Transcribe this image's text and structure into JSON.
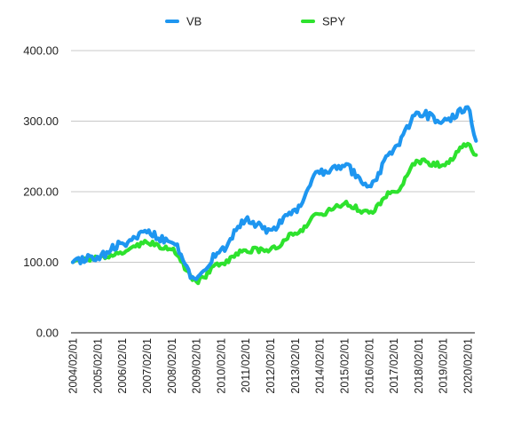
{
  "chart_data": {
    "type": "line",
    "title": "",
    "xlabel": "",
    "ylabel": "",
    "ylim": [
      0,
      400
    ],
    "yticks": [
      "0.00",
      "100.00",
      "200.00",
      "300.00",
      "400.00"
    ],
    "yticks_values": [
      0,
      100,
      200,
      300,
      400
    ],
    "grid": true,
    "legend_position": "top",
    "xticks": [
      "2004/02/01",
      "2005/02/01",
      "2006/02/01",
      "2007/02/01",
      "2008/02/01",
      "2009/02/01",
      "2010/02/01",
      "2011/02/01",
      "2012/02/01",
      "2013/02/01",
      "2014/02/01",
      "2015/02/01",
      "2016/02/01",
      "2017/02/01",
      "2018/02/01",
      "2019/02/01",
      "2020/02/01"
    ],
    "x_step": "1 year (yearly samples; end point 2020/06/01)",
    "x": [
      "2004/02/01",
      "2005/02/01",
      "2006/02/01",
      "2007/02/01",
      "2008/02/01",
      "2009/02/01",
      "2010/02/01",
      "2011/02/01",
      "2012/02/01",
      "2013/02/01",
      "2014/02/01",
      "2015/02/01",
      "2016/02/01",
      "2017/02/01",
      "2018/02/01",
      "2019/02/01",
      "2020/02/01",
      "2020/06/01"
    ],
    "series": [
      {
        "name": "VB",
        "color": "#1E96F0",
        "values": [
          100,
          108,
          127,
          142,
          128,
          76,
          118,
          160,
          146,
          175,
          226,
          236,
          208,
          260,
          312,
          300,
          320,
          272
        ]
      },
      {
        "name": "SPY",
        "color": "#2EE22E",
        "values": [
          100,
          106,
          112,
          128,
          118,
          73,
          98,
          117,
          118,
          141,
          168,
          183,
          170,
          200,
          243,
          238,
          268,
          252
        ]
      }
    ]
  }
}
